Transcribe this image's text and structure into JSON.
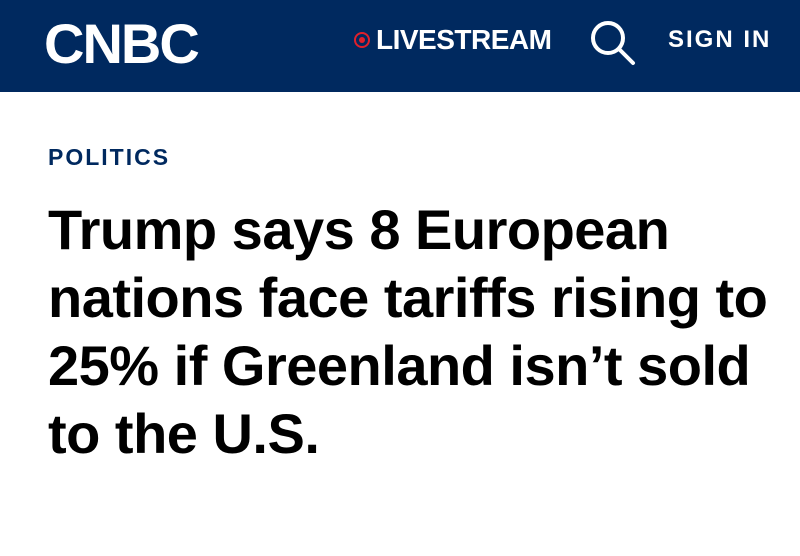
{
  "header": {
    "logo": "CNBC",
    "livestream": "LIVESTREAM",
    "sign_in": "SIGN IN"
  },
  "article": {
    "section": "POLITICS",
    "headline": "Trump says 8 European nations face tariffs rising to 25% if Greenland isn’t sold to the U.S."
  }
}
